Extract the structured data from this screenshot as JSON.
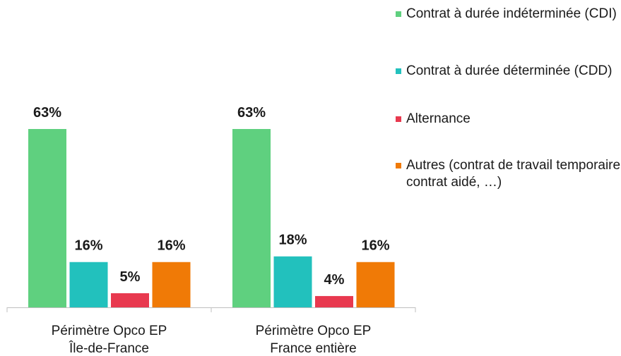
{
  "chart_data": {
    "type": "bar",
    "categories": [
      [
        "Périmètre Opco EP",
        "Île-de-France"
      ],
      [
        "Périmètre Opco EP",
        "France entière"
      ]
    ],
    "series": [
      {
        "name": "Contrat à durée indéterminée (CDI)",
        "color": "#5fd07f",
        "values": [
          63,
          63
        ],
        "labels": [
          "63%",
          "63%"
        ]
      },
      {
        "name": "Contrat à durée déterminée (CDD)",
        "color": "#22c1bd",
        "values": [
          16,
          18
        ],
        "labels": [
          "16%",
          "18%"
        ]
      },
      {
        "name": "Alternance",
        "color": "#e8394f",
        "values": [
          5,
          4
        ],
        "labels": [
          "5%",
          "4%"
        ]
      },
      {
        "name": "Autres (contrat de travail temporaire, contrat aidé, …)",
        "color": "#f07a06",
        "values": [
          16,
          16
        ],
        "labels": [
          "16%",
          "16%"
        ]
      }
    ],
    "legend_position": "top-right",
    "grid": false,
    "ylim": [
      0,
      63
    ]
  }
}
